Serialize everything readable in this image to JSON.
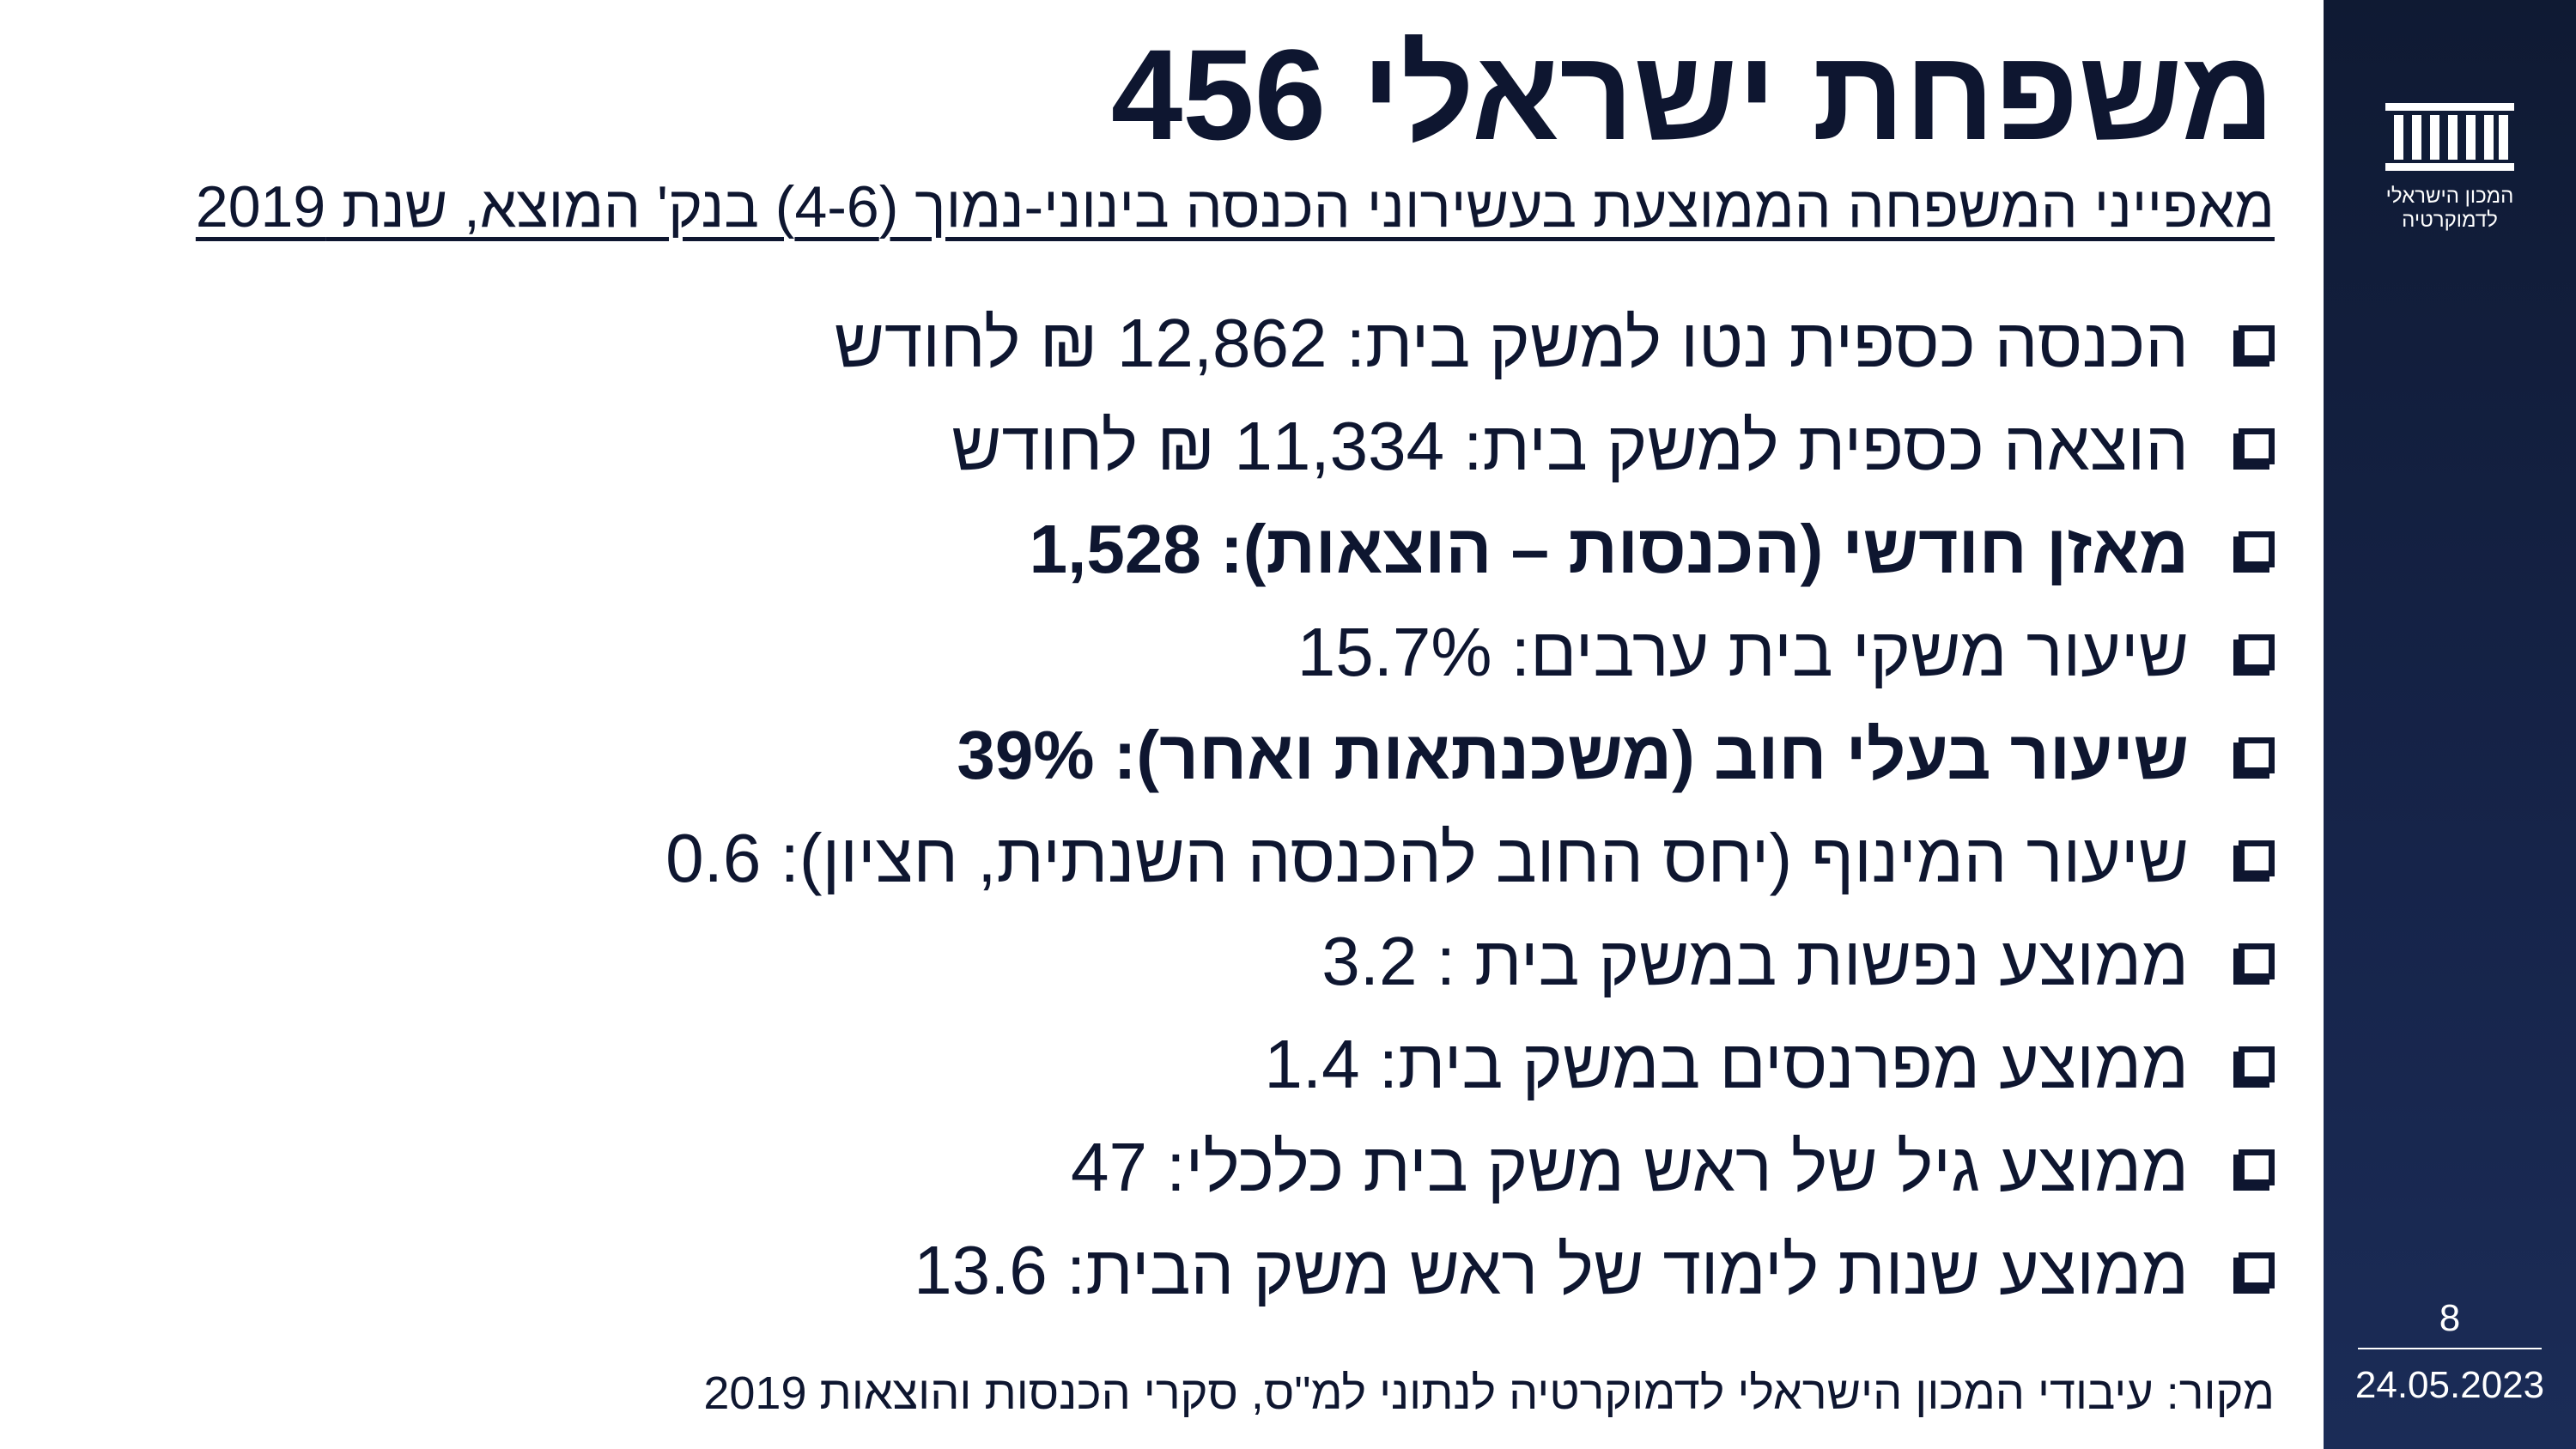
{
  "slide": {
    "title": "משפחת ישראלי 456",
    "subtitle": "מאפייני המשפחה הממוצעת בעשירוני הכנסה בינוני-נמוך (4-6) בנק' המוצא, שנת 2019",
    "bullets": [
      {
        "text": "הכנסה כספית נטו למשק בית: 12,862 ₪ לחודש",
        "bold": false
      },
      {
        "text": "הוצאה כספית למשק בית: 11,334 ₪ לחודש",
        "bold": false
      },
      {
        "text": "מאזן חודשי (הכנסות – הוצאות): 1,528",
        "bold": true
      },
      {
        "text": "שיעור משקי בית ערבים: 15.7%",
        "bold": false
      },
      {
        "text": "שיעור בעלי חוב (משכנתאות ואחר): 39%",
        "bold": true
      },
      {
        "text": "שיעור המינוף (יחס החוב להכנסה השנתית, חציון): 0.6",
        "bold": false
      },
      {
        "text": "ממוצע נפשות במשק בית : 3.2",
        "bold": false
      },
      {
        "text": "ממוצע מפרנסים במשק בית: 1.4",
        "bold": false
      },
      {
        "text": "ממוצע גיל של ראש משק בית כלכלי: 47",
        "bold": false
      },
      {
        "text": "ממוצע שנות לימוד של ראש משק הבית: 13.6",
        "bold": false
      }
    ],
    "source": "מקור: עיבודי המכון הישראלי לדמוקרטיה לנתוני למ\"ס, סקרי הכנסות והוצאות 2019"
  },
  "sidebar": {
    "logo_icon": "parliament-building-icon",
    "logo_line1": "המכון הישראלי",
    "logo_line2": "לדמוקרטיה",
    "page_number": "8",
    "date": "24.05.2023"
  },
  "colors": {
    "text": "#0e1630",
    "sidebar_bg": "#16244a",
    "background": "#ffffff"
  }
}
